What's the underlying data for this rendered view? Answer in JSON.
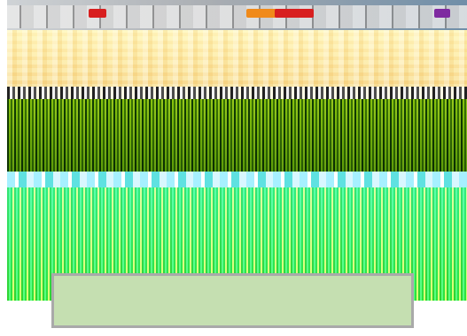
{
  "image": {
    "description_visible_text": [],
    "colors": {
      "sky": "#a9adb2",
      "stands": "#fde79a",
      "pitch_top": "#9ecf2c",
      "pitch_band": "#a6f0ff",
      "pitch_bottom": "#20b51f",
      "caption_fill": "#c5dfb1",
      "caption_border": "#a9a9a9",
      "flag_red": "#d81f1f",
      "flag_orange": "#f08a1a",
      "flag_purple": "#7e2aa0"
    },
    "caption": {
      "text": ""
    }
  }
}
